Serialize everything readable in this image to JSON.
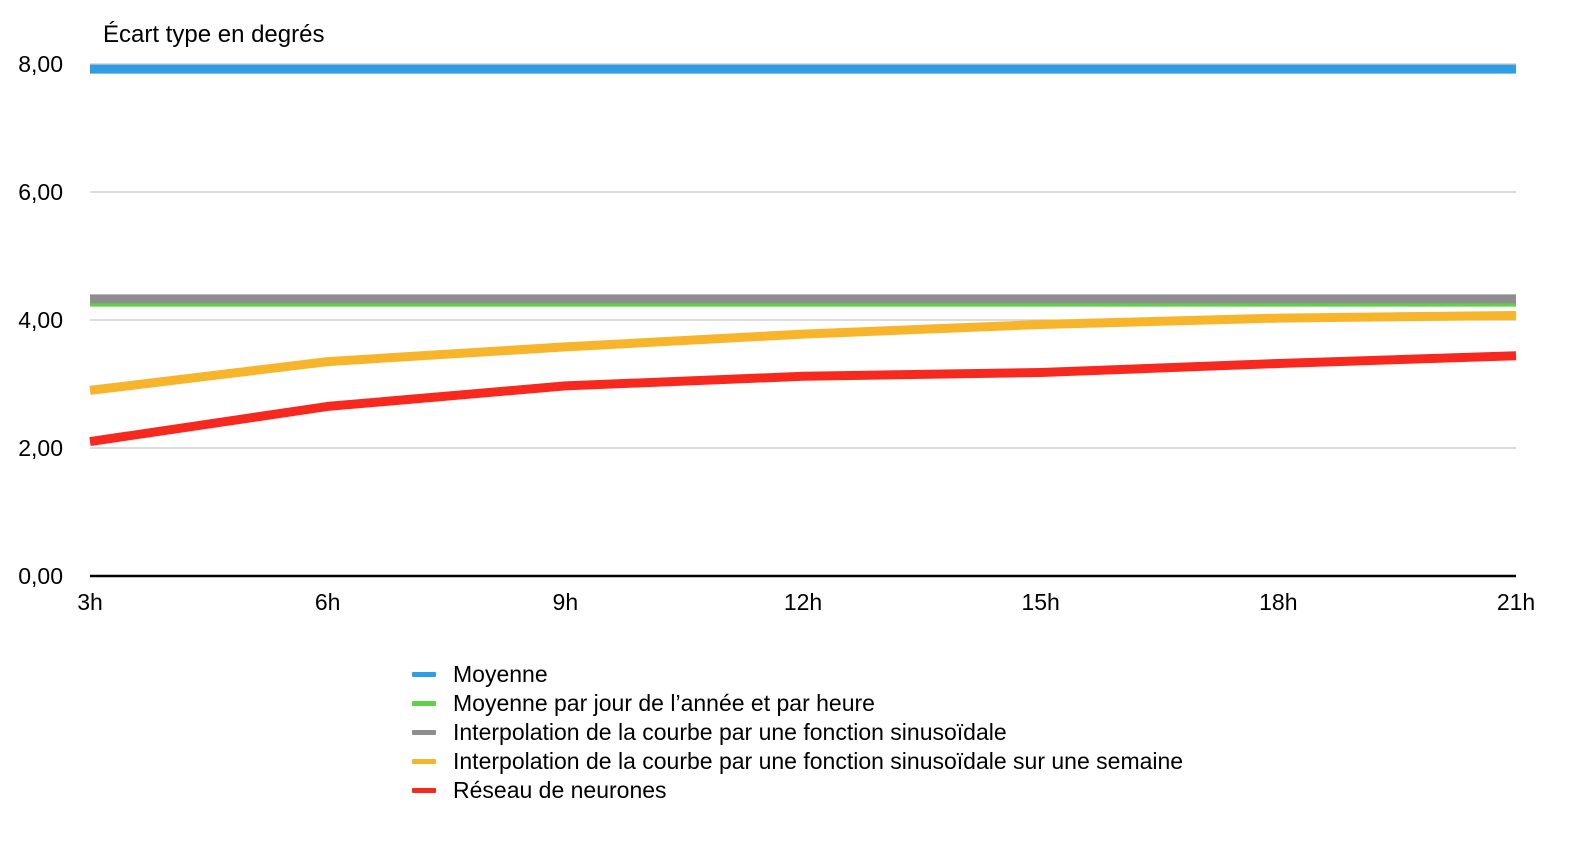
{
  "chart_data": {
    "type": "line",
    "ylabel": "Écart type en degrés",
    "categories": [
      "3h",
      "6h",
      "9h",
      "12h",
      "15h",
      "18h",
      "21h"
    ],
    "ylim": [
      0,
      8
    ],
    "yticks": [
      "0,00",
      "2,00",
      "4,00",
      "6,00",
      "8,00"
    ],
    "ytick_values": [
      0,
      2,
      4,
      6,
      8
    ],
    "grid": true,
    "legend_position": "bottom",
    "series": [
      {
        "name": "Moyenne",
        "color": "#2E9DE6",
        "values": [
          7.92,
          7.92,
          7.92,
          7.92,
          7.92,
          7.92,
          7.92
        ]
      },
      {
        "name": "Moyenne par jour de l’année et par heure",
        "color": "#5ED245",
        "values": [
          4.28,
          4.28,
          4.28,
          4.28,
          4.28,
          4.28,
          4.28
        ]
      },
      {
        "name": "Interpolation de la courbe par une fonction sinusoïdale",
        "color": "#8E8E8E",
        "values": [
          4.33,
          4.33,
          4.33,
          4.33,
          4.33,
          4.33,
          4.33
        ]
      },
      {
        "name": "Interpolation de la courbe par une fonction sinusoïdale sur une semaine",
        "color": "#F7B52C",
        "values": [
          2.9,
          3.35,
          3.58,
          3.78,
          3.93,
          4.03,
          4.07
        ]
      },
      {
        "name": "Réseau de neurones",
        "color": "#F7291E",
        "values": [
          2.1,
          2.65,
          2.97,
          3.12,
          3.18,
          3.32,
          3.44
        ]
      }
    ]
  }
}
